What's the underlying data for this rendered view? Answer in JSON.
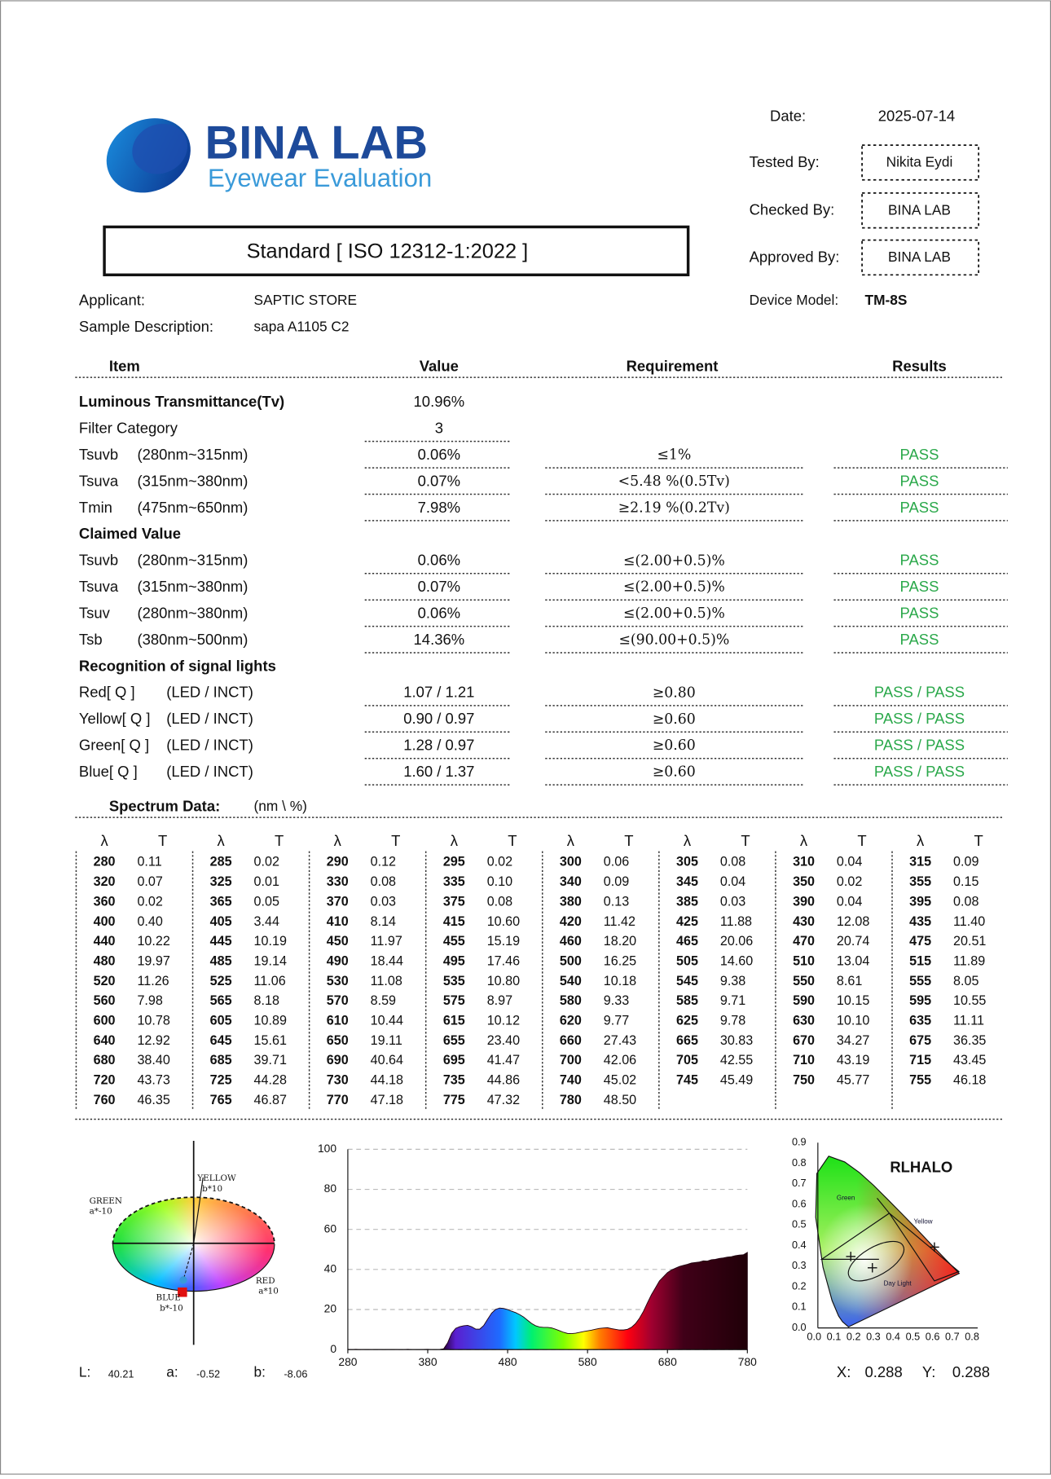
{
  "header": {
    "brand": "BINA LAB",
    "tagline": "Eyewear Evaluation",
    "standard": "Standard [ ISO 12312-1:2022 ]"
  },
  "info": {
    "date": {
      "label": "Date:",
      "value": "2025-07-14"
    },
    "tested_by": {
      "label": "Tested By:",
      "value": "Nikita Eydi"
    },
    "checked_by": {
      "label": "Checked By:",
      "value": "BINA LAB"
    },
    "approved_by": {
      "label": "Approved By:",
      "value": "BINA LAB"
    },
    "device_model": {
      "label": "Device Model:",
      "value": "TM-8S"
    },
    "applicant": {
      "label": "Applicant:",
      "value": "SAPTIC STORE"
    },
    "sample_description": {
      "label": "Sample Description:",
      "value": "sapa A1105 C2"
    }
  },
  "results": {
    "headers": {
      "item": "Item",
      "value": "Value",
      "requirement": "Requirement",
      "results": "Results"
    },
    "rows": [
      {
        "item": "Luminous Transmittance(Tv)",
        "value": "10.96%"
      },
      {
        "item": "Filter Category",
        "value": "3"
      },
      {
        "item": "Tsuvb",
        "range": "(280nm~315nm)",
        "value": "0.06%",
        "requirement": "≤1%",
        "result": "PASS"
      },
      {
        "item": "Tsuva",
        "range": "(315nm~380nm)",
        "value": "0.07%",
        "requirement": "<5.48 %(0.5Tv)",
        "result": "PASS"
      },
      {
        "item": "Tmin",
        "range": "(475nm~650nm)",
        "value": "7.98%",
        "requirement": "≥2.19 %(0.2Tv)",
        "result": "PASS"
      },
      {
        "heading": "Claimed Value"
      },
      {
        "item": "Tsuvb",
        "range": "(280nm~315nm)",
        "value": "0.06%",
        "requirement": "≤(2.00+0.5)%",
        "result": "PASS"
      },
      {
        "item": "Tsuva",
        "range": "(315nm~380nm)",
        "value": "0.07%",
        "requirement": "≤(2.00+0.5)%",
        "result": "PASS"
      },
      {
        "item": "Tsuv",
        "range": "(280nm~380nm)",
        "value": "0.06%",
        "requirement": "≤(2.00+0.5)%",
        "result": "PASS"
      },
      {
        "item": "Tsb",
        "range": "(380nm~500nm)",
        "value": "14.36%",
        "requirement": "≤(90.00+0.5)%",
        "result": "PASS"
      },
      {
        "heading": "Recognition of signal lights"
      },
      {
        "item": "Red[ Q ]",
        "range": "(LED / INCT)",
        "value": "1.07 / 1.21",
        "requirement": "≥0.80",
        "result": "PASS / PASS"
      },
      {
        "item": "Yellow[ Q ]",
        "range": "(LED / INCT)",
        "value": "0.90 / 0.97",
        "requirement": "≥0.60",
        "result": "PASS / PASS"
      },
      {
        "item": "Green[ Q ]",
        "range": "(LED / INCT)",
        "value": "1.28 / 0.97",
        "requirement": "≥0.60",
        "result": "PASS / PASS"
      },
      {
        "item": "Blue[ Q ]",
        "range": "(LED / INCT)",
        "value": "1.60 / 1.37",
        "requirement": "≥0.60",
        "result": "PASS / PASS"
      }
    ]
  },
  "spectrum_table": {
    "title": "Spectrum Data:",
    "unit": "(nm \\ %)",
    "columns": [
      "λ",
      "T"
    ],
    "data": [
      [
        "280",
        "0.11"
      ],
      [
        "285",
        "0.02"
      ],
      [
        "290",
        "0.12"
      ],
      [
        "295",
        "0.02"
      ],
      [
        "300",
        "0.06"
      ],
      [
        "305",
        "0.08"
      ],
      [
        "310",
        "0.04"
      ],
      [
        "315",
        "0.09"
      ],
      [
        "320",
        "0.07"
      ],
      [
        "325",
        "0.01"
      ],
      [
        "330",
        "0.08"
      ],
      [
        "335",
        "0.10"
      ],
      [
        "340",
        "0.09"
      ],
      [
        "345",
        "0.04"
      ],
      [
        "350",
        "0.02"
      ],
      [
        "355",
        "0.15"
      ],
      [
        "360",
        "0.02"
      ],
      [
        "365",
        "0.05"
      ],
      [
        "370",
        "0.03"
      ],
      [
        "375",
        "0.08"
      ],
      [
        "380",
        "0.13"
      ],
      [
        "385",
        "0.03"
      ],
      [
        "390",
        "0.04"
      ],
      [
        "395",
        "0.08"
      ],
      [
        "400",
        "0.40"
      ],
      [
        "405",
        "3.44"
      ],
      [
        "410",
        "8.14"
      ],
      [
        "415",
        "10.60"
      ],
      [
        "420",
        "11.42"
      ],
      [
        "425",
        "11.88"
      ],
      [
        "430",
        "12.08"
      ],
      [
        "435",
        "11.40"
      ],
      [
        "440",
        "10.22"
      ],
      [
        "445",
        "10.19"
      ],
      [
        "450",
        "11.97"
      ],
      [
        "455",
        "15.19"
      ],
      [
        "460",
        "18.20"
      ],
      [
        "465",
        "20.06"
      ],
      [
        "470",
        "20.74"
      ],
      [
        "475",
        "20.51"
      ],
      [
        "480",
        "19.97"
      ],
      [
        "485",
        "19.14"
      ],
      [
        "490",
        "18.44"
      ],
      [
        "495",
        "17.46"
      ],
      [
        "500",
        "16.25"
      ],
      [
        "505",
        "14.60"
      ],
      [
        "510",
        "13.04"
      ],
      [
        "515",
        "11.89"
      ],
      [
        "520",
        "11.26"
      ],
      [
        "525",
        "11.06"
      ],
      [
        "530",
        "11.08"
      ],
      [
        "535",
        "10.80"
      ],
      [
        "540",
        "10.18"
      ],
      [
        "545",
        "9.38"
      ],
      [
        "550",
        "8.61"
      ],
      [
        "555",
        "8.05"
      ],
      [
        "560",
        "7.98"
      ],
      [
        "565",
        "8.18"
      ],
      [
        "570",
        "8.59"
      ],
      [
        "575",
        "8.97"
      ],
      [
        "580",
        "9.33"
      ],
      [
        "585",
        "9.71"
      ],
      [
        "590",
        "10.15"
      ],
      [
        "595",
        "10.55"
      ],
      [
        "600",
        "10.78"
      ],
      [
        "605",
        "10.89"
      ],
      [
        "610",
        "10.44"
      ],
      [
        "615",
        "10.12"
      ],
      [
        "620",
        "9.77"
      ],
      [
        "625",
        "9.78"
      ],
      [
        "630",
        "10.10"
      ],
      [
        "635",
        "11.11"
      ],
      [
        "640",
        "12.92"
      ],
      [
        "645",
        "15.61"
      ],
      [
        "650",
        "19.11"
      ],
      [
        "655",
        "23.40"
      ],
      [
        "660",
        "27.43"
      ],
      [
        "665",
        "30.83"
      ],
      [
        "670",
        "34.27"
      ],
      [
        "675",
        "36.35"
      ],
      [
        "680",
        "38.40"
      ],
      [
        "685",
        "39.71"
      ],
      [
        "690",
        "40.64"
      ],
      [
        "695",
        "41.47"
      ],
      [
        "700",
        "42.06"
      ],
      [
        "705",
        "42.55"
      ],
      [
        "710",
        "43.19"
      ],
      [
        "715",
        "43.45"
      ],
      [
        "720",
        "43.73"
      ],
      [
        "725",
        "44.28"
      ],
      [
        "730",
        "44.18"
      ],
      [
        "735",
        "44.86"
      ],
      [
        "740",
        "45.02"
      ],
      [
        "745",
        "45.49"
      ],
      [
        "750",
        "45.77"
      ],
      [
        "755",
        "46.18"
      ],
      [
        "760",
        "46.35"
      ],
      [
        "765",
        "46.87"
      ],
      [
        "770",
        "47.18"
      ],
      [
        "775",
        "47.32"
      ],
      [
        "780",
        "48.50"
      ]
    ]
  },
  "spectrum_chart": {
    "type": "area",
    "xlim": [
      280,
      780
    ],
    "ylim": [
      0,
      100
    ],
    "xticks": [
      280,
      380,
      480,
      580,
      680,
      780
    ],
    "yticks": [
      0,
      20,
      40,
      60,
      80,
      100
    ],
    "grid": true
  },
  "color_space": {
    "yellow": "YELLOW",
    "yellow_axis": "b*10",
    "green": "GREEN",
    "green_axis": "a*-10",
    "red": "RED",
    "red_axis": "a*10",
    "blue": "BLUE",
    "blue_axis": "b*-10",
    "L": {
      "label": "L:",
      "value": "40.21"
    },
    "a": {
      "label": "a:",
      "value": "-0.52"
    },
    "b": {
      "label": "b:",
      "value": "-8.06"
    }
  },
  "chromaticity": {
    "title": "RLHALO",
    "yticks": [
      "0.0",
      "0.1",
      "0.2",
      "0.3",
      "0.4",
      "0.5",
      "0.6",
      "0.7",
      "0.8",
      "0.9"
    ],
    "xticks": [
      "0.0",
      "0.1",
      "0.2",
      "0.3",
      "0.4",
      "0.5",
      "0.6",
      "0.7",
      "0.8"
    ],
    "regions": [
      "Green",
      "Yellow",
      "Day Light"
    ],
    "x": {
      "label": "X:",
      "value": "0.288"
    },
    "y": {
      "label": "Y:",
      "value": "0.288"
    }
  }
}
